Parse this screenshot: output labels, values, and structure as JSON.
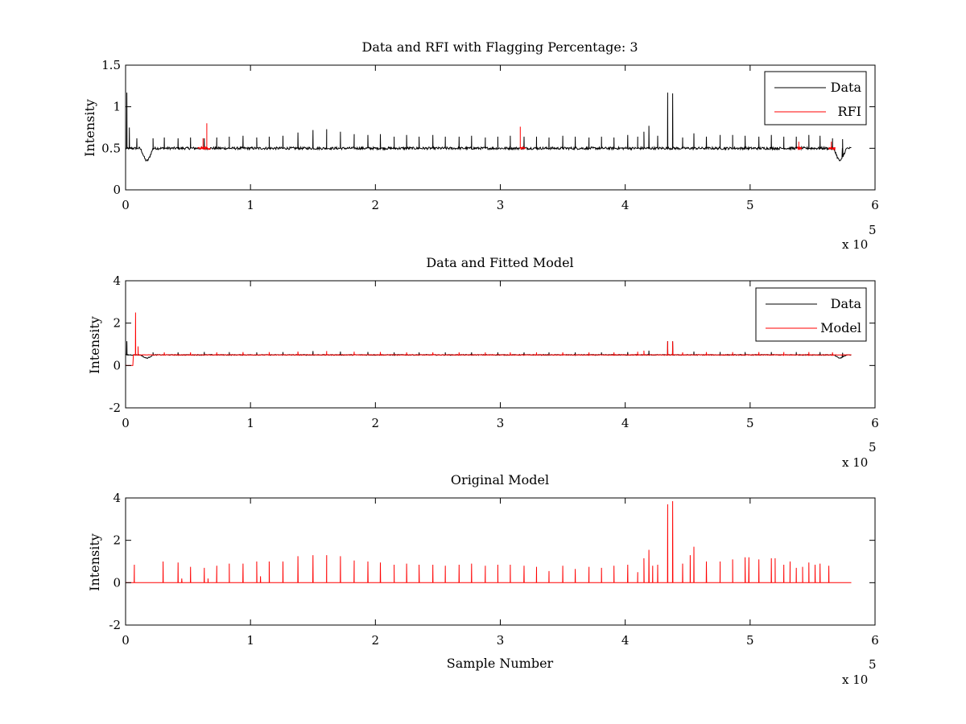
{
  "figure": {
    "background": "#ffffff",
    "axis_color": "#000000"
  },
  "chart_data": [
    {
      "type": "line",
      "title": "Data and RFI with Flagging Percentage: 3",
      "xlabel": "",
      "ylabel": "Intensity",
      "xlim": [
        0,
        6
      ],
      "ylim": [
        0,
        1.5
      ],
      "xticks": [
        "0",
        "1",
        "2",
        "3",
        "4",
        "5",
        "6"
      ],
      "yticks": [
        "0",
        "0.5",
        "1",
        "1.5"
      ],
      "ytick_values": [
        0,
        0.5,
        1,
        1.5
      ],
      "x_multiplier": "x 10",
      "x_exponent": "5",
      "legend": {
        "position": "top-right",
        "entries": [
          "Data",
          "RFI"
        ]
      },
      "series": [
        {
          "name": "Data",
          "color": "#000000",
          "baseline": 0.5,
          "noise": 0.015,
          "peaks": [
            [
              0.01,
              1.17
            ],
            [
              0.03,
              0.75
            ],
            [
              0.09,
              0.62
            ],
            [
              0.22,
              0.62
            ],
            [
              0.31,
              0.63
            ],
            [
              0.42,
              0.62
            ],
            [
              0.52,
              0.63
            ],
            [
              0.63,
              0.62
            ],
            [
              0.73,
              0.63
            ],
            [
              0.83,
              0.64
            ],
            [
              0.94,
              0.65
            ],
            [
              1.05,
              0.63
            ],
            [
              1.15,
              0.64
            ],
            [
              1.26,
              0.65
            ],
            [
              1.38,
              0.69
            ],
            [
              1.5,
              0.72
            ],
            [
              1.61,
              0.73
            ],
            [
              1.72,
              0.7
            ],
            [
              1.83,
              0.67
            ],
            [
              1.94,
              0.66
            ],
            [
              2.04,
              0.67
            ],
            [
              2.15,
              0.64
            ],
            [
              2.25,
              0.66
            ],
            [
              2.35,
              0.64
            ],
            [
              2.46,
              0.66
            ],
            [
              2.56,
              0.64
            ],
            [
              2.67,
              0.64
            ],
            [
              2.77,
              0.65
            ],
            [
              2.88,
              0.63
            ],
            [
              2.98,
              0.64
            ],
            [
              3.08,
              0.65
            ],
            [
              3.19,
              0.64
            ],
            [
              3.29,
              0.64
            ],
            [
              3.39,
              0.63
            ],
            [
              3.5,
              0.65
            ],
            [
              3.6,
              0.64
            ],
            [
              3.71,
              0.63
            ],
            [
              3.81,
              0.64
            ],
            [
              3.91,
              0.63
            ],
            [
              4.02,
              0.66
            ],
            [
              4.1,
              0.64
            ],
            [
              4.15,
              0.7
            ],
            [
              4.19,
              0.77
            ],
            [
              4.26,
              0.65
            ],
            [
              4.34,
              1.17
            ],
            [
              4.38,
              1.16
            ],
            [
              4.46,
              0.63
            ],
            [
              4.55,
              0.68
            ],
            [
              4.65,
              0.64
            ],
            [
              4.76,
              0.66
            ],
            [
              4.86,
              0.66
            ],
            [
              4.96,
              0.65
            ],
            [
              5.07,
              0.64
            ],
            [
              5.17,
              0.66
            ],
            [
              5.27,
              0.64
            ],
            [
              5.37,
              0.64
            ],
            [
              5.47,
              0.66
            ],
            [
              5.56,
              0.65
            ],
            [
              5.66,
              0.62
            ],
            [
              5.74,
              0.61
            ]
          ],
          "dips": [
            [
              0.17,
              0.35
            ],
            [
              5.72,
              0.35
            ]
          ],
          "end_x": 5.81
        },
        {
          "name": "RFI",
          "color": "#ff0000",
          "segments": [
            [
              0.58,
              0.68
            ],
            [
              3.16,
              3.2
            ],
            [
              5.38,
              5.41
            ],
            [
              5.63,
              5.68
            ]
          ],
          "peaks": [
            [
              0.65,
              0.8
            ],
            [
              0.62,
              0.62
            ],
            [
              3.16,
              0.76
            ],
            [
              5.39,
              0.58
            ],
            [
              5.65,
              0.58
            ]
          ]
        }
      ]
    },
    {
      "type": "line",
      "title": "Data and Fitted Model",
      "xlabel": "",
      "ylabel": "Intensity",
      "xlim": [
        0,
        6
      ],
      "ylim": [
        -2,
        4
      ],
      "xticks": [
        "0",
        "1",
        "2",
        "3",
        "4",
        "5",
        "6"
      ],
      "yticks": [
        "-2",
        "0",
        "2",
        "4"
      ],
      "ytick_values": [
        -2,
        0,
        2,
        4
      ],
      "x_multiplier": "x 10",
      "x_exponent": "5",
      "legend": {
        "position": "top-right",
        "entries": [
          "Data",
          "Model"
        ]
      },
      "series": [
        {
          "name": "Data",
          "color": "#000000",
          "baseline": 0.5,
          "noise": 0.02,
          "peaks": [
            [
              0.01,
              1.15
            ],
            [
              0.22,
              0.62
            ],
            [
              0.42,
              0.62
            ],
            [
              0.63,
              0.64
            ],
            [
              0.83,
              0.63
            ],
            [
              1.05,
              0.62
            ],
            [
              1.26,
              0.63
            ],
            [
              1.5,
              0.68
            ],
            [
              1.72,
              0.66
            ],
            [
              1.94,
              0.64
            ],
            [
              2.15,
              0.62
            ],
            [
              2.35,
              0.62
            ],
            [
              2.56,
              0.62
            ],
            [
              2.77,
              0.62
            ],
            [
              2.98,
              0.62
            ],
            [
              3.19,
              0.62
            ],
            [
              3.39,
              0.62
            ],
            [
              3.6,
              0.62
            ],
            [
              3.81,
              0.62
            ],
            [
              4.02,
              0.63
            ],
            [
              4.19,
              0.7
            ],
            [
              4.34,
              1.15
            ],
            [
              4.38,
              1.14
            ],
            [
              4.55,
              0.66
            ],
            [
              4.76,
              0.64
            ],
            [
              4.96,
              0.63
            ],
            [
              5.17,
              0.63
            ],
            [
              5.37,
              0.63
            ],
            [
              5.56,
              0.63
            ],
            [
              5.74,
              0.6
            ]
          ],
          "dips": [
            [
              0.17,
              0.35
            ],
            [
              5.72,
              0.35
            ]
          ],
          "end_x": 5.81
        },
        {
          "name": "Model",
          "color": "#ff0000",
          "baseline": 0.5,
          "noise": 0.012,
          "start_low": [
            0.0,
            0.06,
            0.0
          ],
          "peaks": [
            [
              0.08,
              2.5
            ],
            [
              0.1,
              0.9
            ],
            [
              0.31,
              0.62
            ],
            [
              0.52,
              0.62
            ],
            [
              0.73,
              0.62
            ],
            [
              0.94,
              0.63
            ],
            [
              1.15,
              0.63
            ],
            [
              1.38,
              0.66
            ],
            [
              1.61,
              0.68
            ],
            [
              1.83,
              0.65
            ],
            [
              2.04,
              0.64
            ],
            [
              2.25,
              0.62
            ],
            [
              2.46,
              0.62
            ],
            [
              2.67,
              0.62
            ],
            [
              2.88,
              0.62
            ],
            [
              3.08,
              0.62
            ],
            [
              3.29,
              0.62
            ],
            [
              3.5,
              0.62
            ],
            [
              3.71,
              0.62
            ],
            [
              3.91,
              0.62
            ],
            [
              4.1,
              0.65
            ],
            [
              4.15,
              0.7
            ],
            [
              4.34,
              1.15
            ],
            [
              4.38,
              1.14
            ],
            [
              4.46,
              0.62
            ],
            [
              4.65,
              0.63
            ],
            [
              4.86,
              0.63
            ],
            [
              5.07,
              0.63
            ],
            [
              5.27,
              0.63
            ],
            [
              5.47,
              0.63
            ],
            [
              5.66,
              0.62
            ]
          ],
          "end_x": 5.81
        }
      ]
    },
    {
      "type": "line",
      "title": "Original Model",
      "xlabel": "Sample Number",
      "ylabel": "Intensity",
      "xlim": [
        0,
        6
      ],
      "ylim": [
        -2,
        4
      ],
      "xticks": [
        "0",
        "1",
        "2",
        "3",
        "4",
        "5",
        "6"
      ],
      "yticks": [
        "-2",
        "0",
        "2",
        "4"
      ],
      "ytick_values": [
        -2,
        0,
        2,
        4
      ],
      "x_multiplier": "x 10",
      "x_exponent": "5",
      "legend": null,
      "series": [
        {
          "name": "",
          "color": "#ff0000",
          "baseline": 0.0,
          "noise": 0.0,
          "peaks": [
            [
              0.07,
              0.85
            ],
            [
              0.3,
              1.0
            ],
            [
              0.42,
              0.95
            ],
            [
              0.45,
              0.2
            ],
            [
              0.52,
              0.75
            ],
            [
              0.63,
              0.7
            ],
            [
              0.66,
              0.2
            ],
            [
              0.73,
              0.8
            ],
            [
              0.83,
              0.9
            ],
            [
              0.94,
              0.9
            ],
            [
              1.05,
              1.0
            ],
            [
              1.08,
              0.3
            ],
            [
              1.15,
              1.0
            ],
            [
              1.26,
              1.0
            ],
            [
              1.38,
              1.25
            ],
            [
              1.5,
              1.3
            ],
            [
              1.61,
              1.3
            ],
            [
              1.72,
              1.25
            ],
            [
              1.83,
              1.05
            ],
            [
              1.94,
              1.0
            ],
            [
              2.04,
              0.95
            ],
            [
              2.15,
              0.85
            ],
            [
              2.25,
              0.9
            ],
            [
              2.35,
              0.85
            ],
            [
              2.46,
              0.85
            ],
            [
              2.56,
              0.8
            ],
            [
              2.67,
              0.85
            ],
            [
              2.77,
              0.9
            ],
            [
              2.88,
              0.8
            ],
            [
              2.98,
              0.85
            ],
            [
              3.08,
              0.85
            ],
            [
              3.19,
              0.8
            ],
            [
              3.29,
              0.75
            ],
            [
              3.39,
              0.55
            ],
            [
              3.5,
              0.8
            ],
            [
              3.6,
              0.65
            ],
            [
              3.71,
              0.75
            ],
            [
              3.81,
              0.7
            ],
            [
              3.91,
              0.8
            ],
            [
              4.02,
              0.85
            ],
            [
              4.1,
              0.5
            ],
            [
              4.15,
              1.15
            ],
            [
              4.19,
              1.55
            ],
            [
              4.22,
              0.8
            ],
            [
              4.26,
              0.85
            ],
            [
              4.34,
              3.7
            ],
            [
              4.38,
              3.85
            ],
            [
              4.46,
              0.9
            ],
            [
              4.52,
              1.3
            ],
            [
              4.55,
              1.7
            ],
            [
              4.65,
              1.0
            ],
            [
              4.76,
              1.0
            ],
            [
              4.86,
              1.1
            ],
            [
              4.96,
              1.2
            ],
            [
              4.99,
              1.2
            ],
            [
              5.07,
              1.1
            ],
            [
              5.17,
              1.15
            ],
            [
              5.2,
              1.15
            ],
            [
              5.27,
              0.85
            ],
            [
              5.32,
              1.0
            ],
            [
              5.37,
              0.7
            ],
            [
              5.42,
              0.75
            ],
            [
              5.47,
              0.95
            ],
            [
              5.52,
              0.85
            ],
            [
              5.56,
              0.9
            ],
            [
              5.63,
              0.8
            ]
          ],
          "end_x": 5.81
        }
      ]
    }
  ]
}
